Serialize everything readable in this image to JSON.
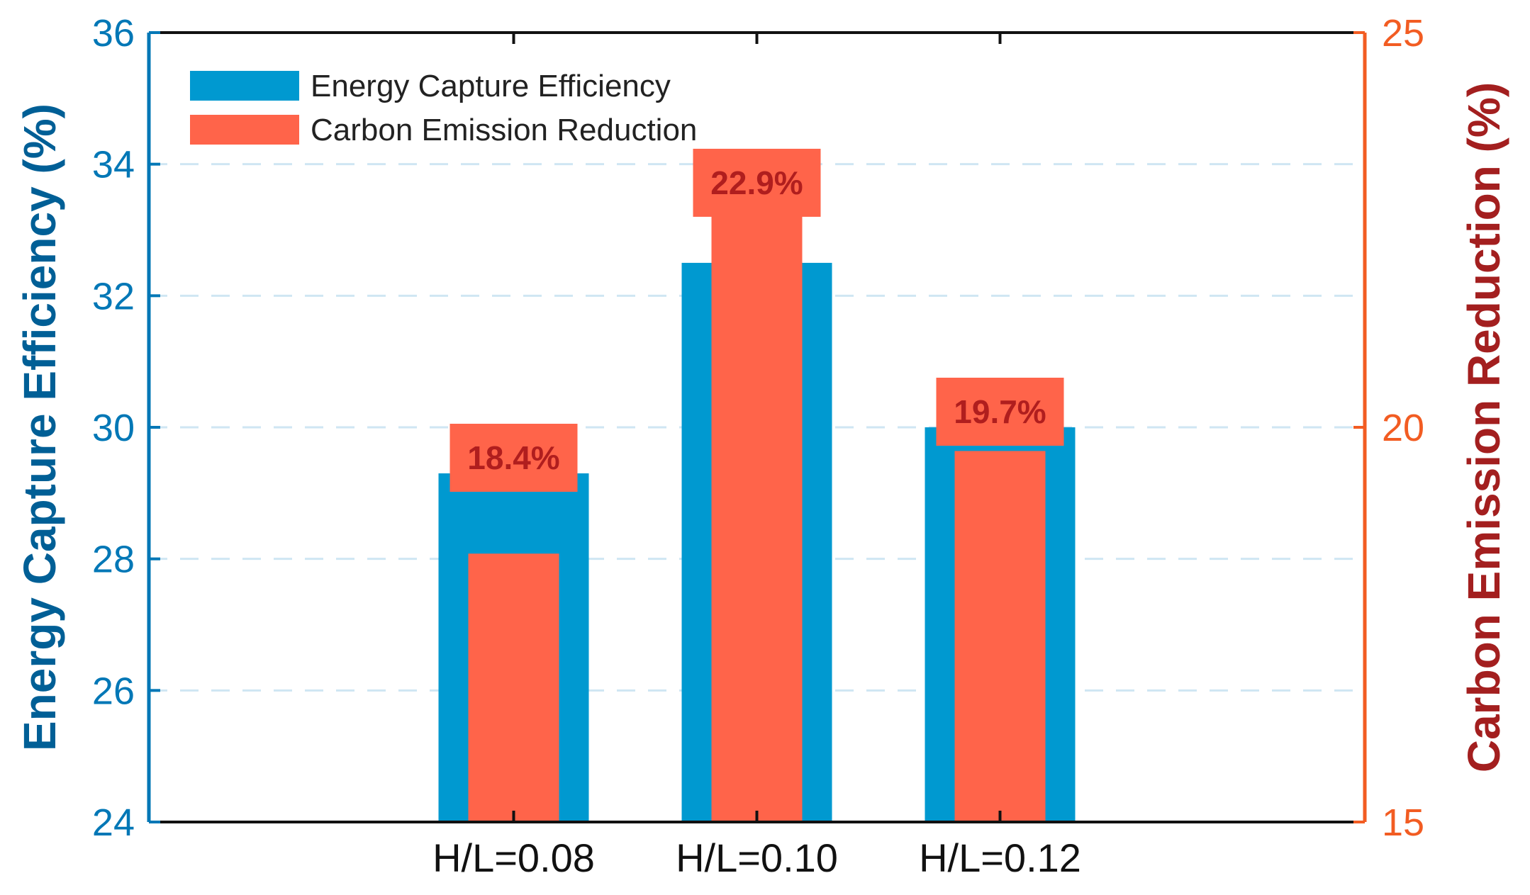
{
  "chart_data": {
    "type": "bar",
    "title": "",
    "categories": [
      "H/L=0.08",
      "H/L=0.10",
      "H/L=0.12"
    ],
    "xlabel": "",
    "series": [
      {
        "name": "Energy Capture Efficiency",
        "axis": "left",
        "values": [
          29.3,
          32.5,
          30.0
        ],
        "color": "#0099D0"
      },
      {
        "name": "Carbon Emission Reduction",
        "axis": "right",
        "values": [
          18.4,
          22.9,
          19.7
        ],
        "color": "#FF644A",
        "data_labels": [
          "18.4%",
          "22.9%",
          "19.7%"
        ]
      }
    ],
    "y_left": {
      "label": "Energy Capture Efficiency (%)",
      "ylim": [
        24,
        36
      ],
      "ticks": [
        "24",
        "26",
        "28",
        "30",
        "32",
        "34",
        "36"
      ],
      "color": "#0077B6"
    },
    "y_right": {
      "label": "Carbon Emission Reduction (%)",
      "ylim": [
        15,
        25
      ],
      "ticks": [
        "15",
        "20",
        "25"
      ],
      "color": "#F25C22"
    },
    "grid": "horizontal dashed",
    "legend": "top-left",
    "label_box_color": "#FF644A"
  }
}
